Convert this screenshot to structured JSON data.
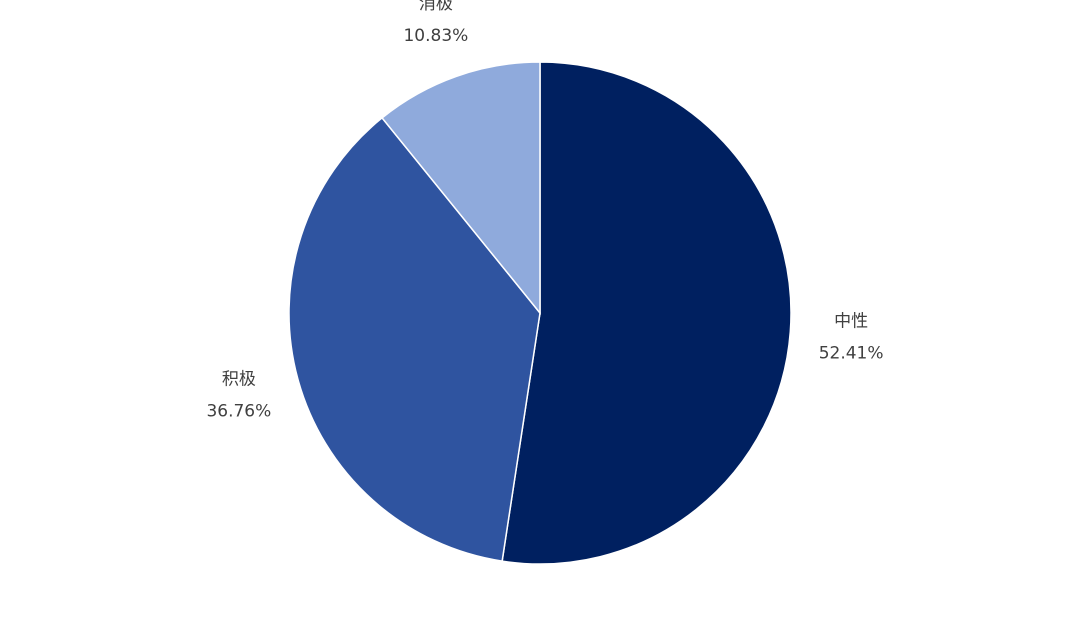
{
  "chart_data": {
    "type": "pie",
    "categories": [
      "中性",
      "积极",
      "消极"
    ],
    "values": [
      52.41,
      36.76,
      10.83
    ],
    "value_labels": [
      "52.41%",
      "36.76%",
      "10.83%"
    ],
    "colors": [
      "#002060",
      "#2f54a0",
      "#8faadc"
    ]
  }
}
